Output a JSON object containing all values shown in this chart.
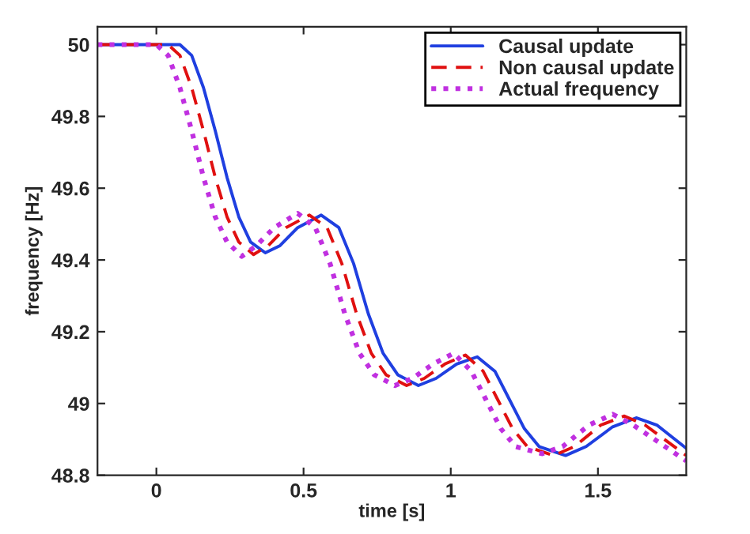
{
  "chart_data": {
    "type": "line",
    "xlabel": "time [s]",
    "ylabel": "frequency [Hz]",
    "xlim": [
      -0.2,
      1.8
    ],
    "ylim": [
      48.8,
      50.05
    ],
    "xticks": [
      0,
      0.5,
      1,
      1.5
    ],
    "yticks": [
      48.8,
      49,
      49.2,
      49.4,
      49.6,
      49.8,
      50
    ],
    "grid": false,
    "legend": "top right",
    "series": [
      {
        "name": "Causal update",
        "color": "#1f3fe0",
        "line_style": "solid",
        "x": [
          -0.2,
          0.08,
          0.12,
          0.16,
          0.2,
          0.24,
          0.28,
          0.32,
          0.37,
          0.42,
          0.48,
          0.56,
          0.62,
          0.67,
          0.72,
          0.77,
          0.82,
          0.89,
          0.95,
          1.02,
          1.09,
          1.15,
          1.2,
          1.25,
          1.3,
          1.39,
          1.46,
          1.55,
          1.63,
          1.7,
          1.8
        ],
        "values": [
          50,
          50,
          49.97,
          49.88,
          49.76,
          49.63,
          49.52,
          49.45,
          49.42,
          49.44,
          49.49,
          49.525,
          49.49,
          49.39,
          49.25,
          49.14,
          49.08,
          49.05,
          49.07,
          49.11,
          49.13,
          49.09,
          49.01,
          48.93,
          48.88,
          48.855,
          48.88,
          48.935,
          48.96,
          48.94,
          48.875
        ]
      },
      {
        "name": "Non causal update",
        "color": "#e01010",
        "line_style": "dashed",
        "x": [
          -0.2,
          0.04,
          0.08,
          0.12,
          0.16,
          0.2,
          0.24,
          0.28,
          0.33,
          0.38,
          0.44,
          0.52,
          0.58,
          0.63,
          0.68,
          0.73,
          0.78,
          0.85,
          0.91,
          0.98,
          1.05,
          1.11,
          1.16,
          1.21,
          1.26,
          1.35,
          1.42,
          1.51,
          1.59,
          1.66,
          1.8
        ],
        "values": [
          50,
          50,
          49.97,
          49.88,
          49.76,
          49.63,
          49.52,
          49.45,
          49.415,
          49.44,
          49.49,
          49.525,
          49.49,
          49.39,
          49.25,
          49.14,
          49.08,
          49.05,
          49.07,
          49.11,
          49.135,
          49.09,
          49.01,
          48.93,
          48.88,
          48.855,
          48.88,
          48.94,
          48.965,
          48.94,
          48.855
        ]
      },
      {
        "name": "Actual frequency",
        "color": "#c030e0",
        "line_style": "dotted",
        "x": [
          -0.2,
          0.0,
          0.04,
          0.08,
          0.12,
          0.16,
          0.2,
          0.24,
          0.29,
          0.34,
          0.4,
          0.48,
          0.54,
          0.59,
          0.64,
          0.69,
          0.74,
          0.81,
          0.87,
          0.94,
          1.01,
          1.07,
          1.12,
          1.17,
          1.22,
          1.31,
          1.38,
          1.47,
          1.55,
          1.62,
          1.8
        ],
        "values": [
          50,
          50,
          49.97,
          49.88,
          49.76,
          49.63,
          49.52,
          49.45,
          49.41,
          49.44,
          49.49,
          49.53,
          49.49,
          49.39,
          49.25,
          49.14,
          49.08,
          49.05,
          49.07,
          49.11,
          49.14,
          49.09,
          49.01,
          48.93,
          48.88,
          48.86,
          48.88,
          48.94,
          48.97,
          48.94,
          48.84
        ]
      }
    ]
  }
}
